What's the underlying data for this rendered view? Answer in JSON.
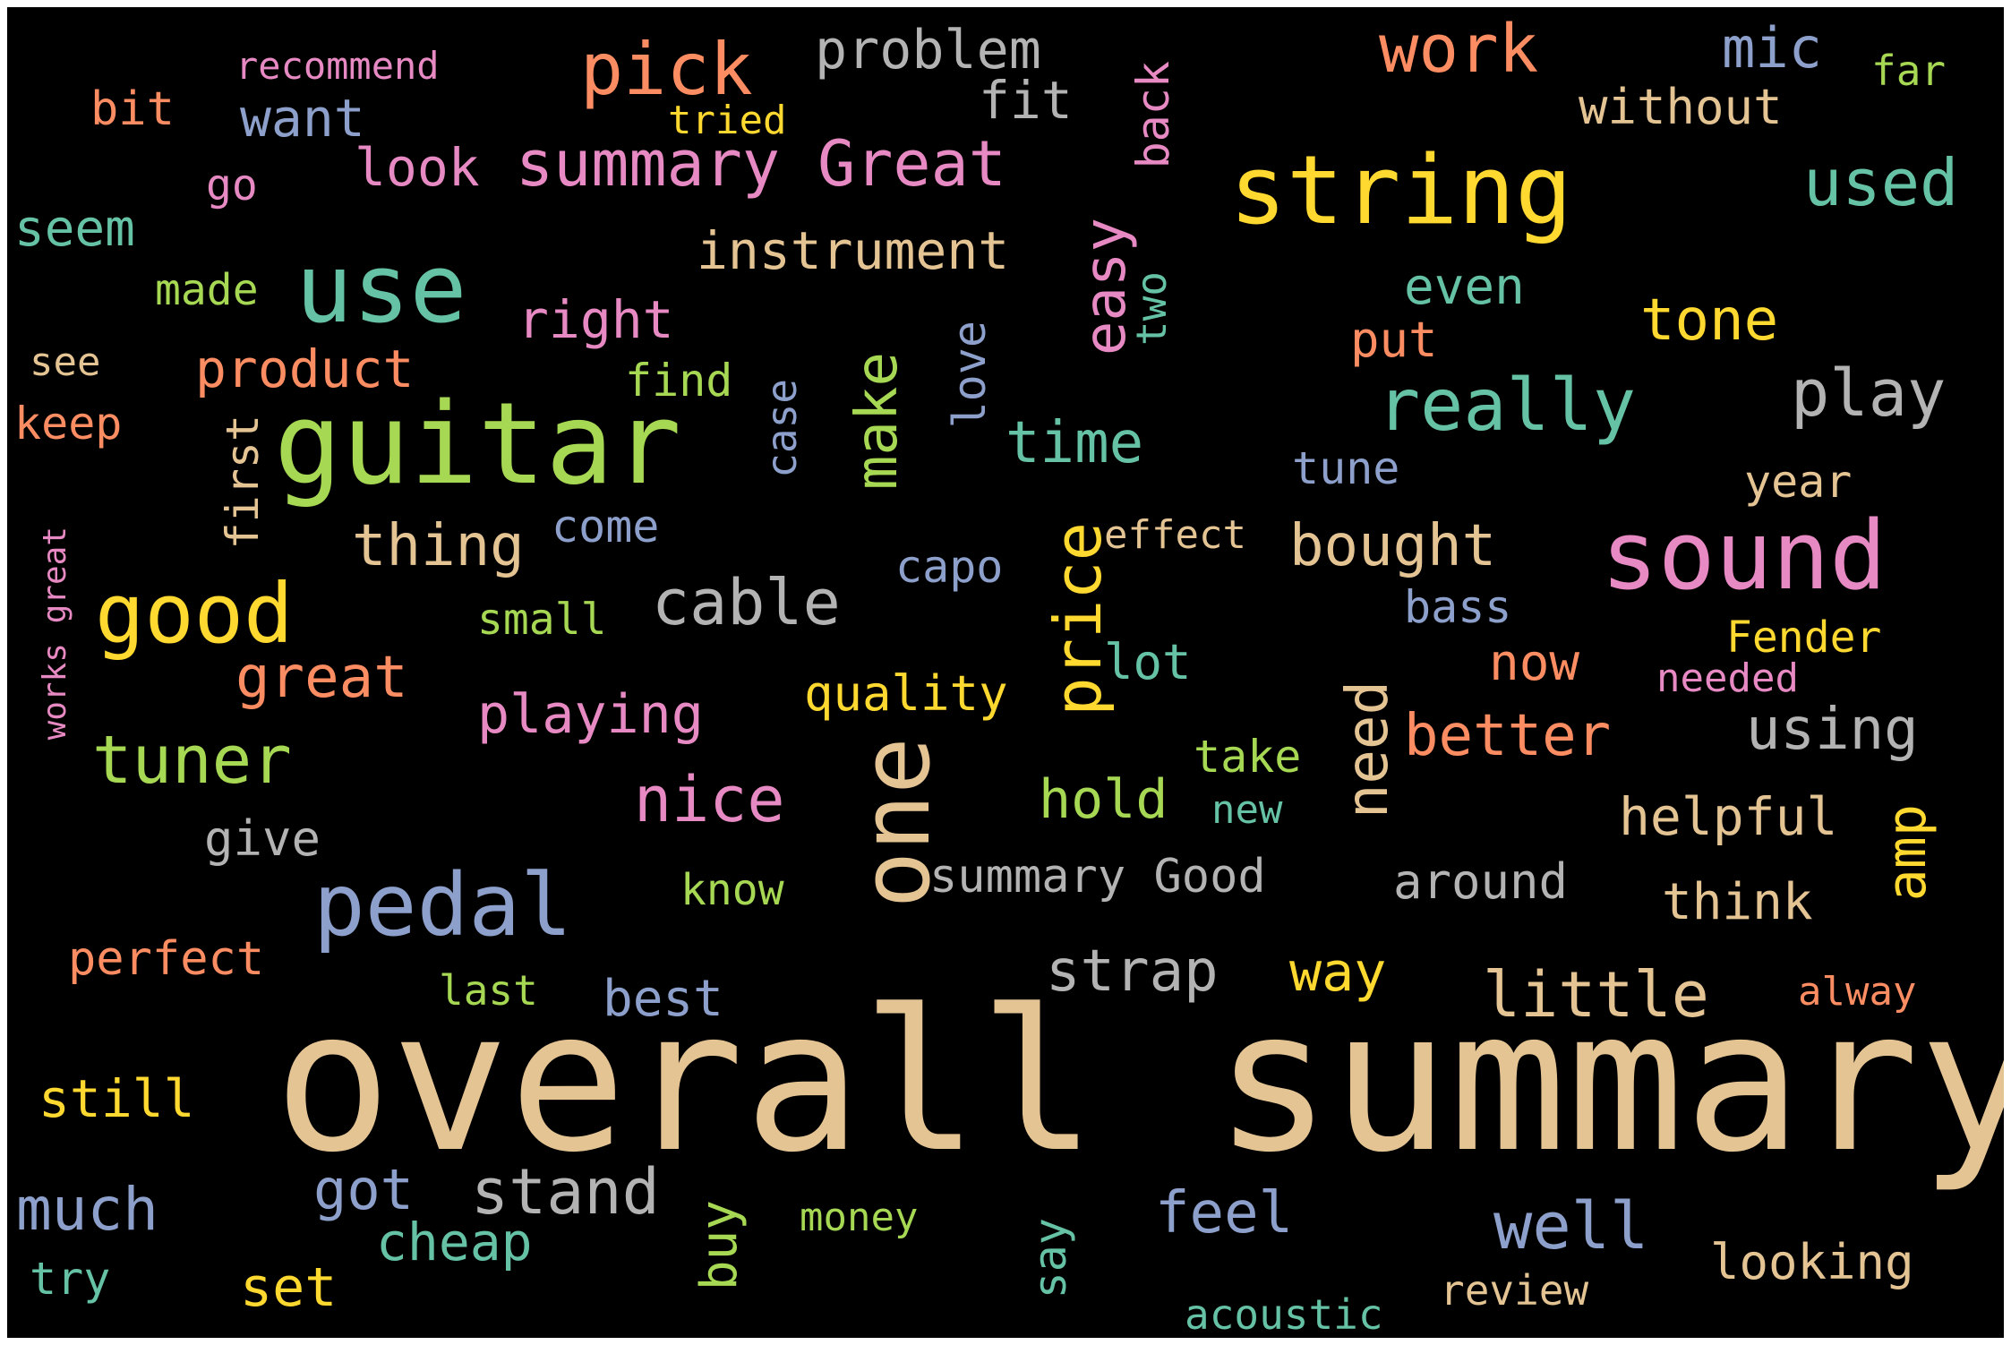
{
  "words": [
    {
      "text": "overall summary",
      "color": "#e5c494"
    },
    {
      "text": "guitar",
      "color": "#a6d854"
    },
    {
      "text": "string",
      "color": "#ffd92f"
    },
    {
      "text": "sound",
      "color": "#e78ac3"
    },
    {
      "text": "use",
      "color": "#66c2a5"
    },
    {
      "text": "one",
      "color": "#e5c494"
    },
    {
      "text": "pedal",
      "color": "#8da0cb"
    },
    {
      "text": "summary Great",
      "color": "#e78ac3"
    },
    {
      "text": "good",
      "color": "#ffd92f"
    },
    {
      "text": "pick",
      "color": "#fc8d62"
    },
    {
      "text": "really",
      "color": "#66c2a5"
    },
    {
      "text": "price",
      "color": "#ffd92f"
    },
    {
      "text": "work",
      "color": "#fc8d62"
    },
    {
      "text": "used",
      "color": "#66c2a5"
    },
    {
      "text": "play",
      "color": "#b3b3b3"
    },
    {
      "text": "easy",
      "color": "#e78ac3"
    },
    {
      "text": "tone",
      "color": "#ffd92f"
    },
    {
      "text": "tuner",
      "color": "#a6d854"
    },
    {
      "text": "cable",
      "color": "#b3b3b3"
    },
    {
      "text": "nice",
      "color": "#e78ac3"
    },
    {
      "text": "make",
      "color": "#a6d854"
    },
    {
      "text": "little",
      "color": "#e5c494"
    },
    {
      "text": "well",
      "color": "#8da0cb"
    },
    {
      "text": "need",
      "color": "#e5c494"
    },
    {
      "text": "better",
      "color": "#fc8d62"
    },
    {
      "text": "using",
      "color": "#b3b3b3"
    },
    {
      "text": "amp",
      "color": "#ffd92f"
    },
    {
      "text": "great",
      "color": "#fc8d62"
    },
    {
      "text": "thing",
      "color": "#e5c494"
    },
    {
      "text": "stand",
      "color": "#b3b3b3"
    },
    {
      "text": "strap",
      "color": "#b3b3b3"
    },
    {
      "text": "much",
      "color": "#8da0cb"
    },
    {
      "text": "bought",
      "color": "#e5c494"
    },
    {
      "text": "time",
      "color": "#66c2a5"
    },
    {
      "text": "problem",
      "color": "#b3b3b3"
    },
    {
      "text": "instrument",
      "color": "#e5c494"
    },
    {
      "text": "playing",
      "color": "#e78ac3"
    },
    {
      "text": "product",
      "color": "#fc8d62"
    },
    {
      "text": "helpful",
      "color": "#e5c494"
    },
    {
      "text": "want",
      "color": "#8da0cb"
    },
    {
      "text": "without",
      "color": "#e5c494"
    },
    {
      "text": "summary Good",
      "color": "#b3b3b3"
    },
    {
      "text": "quality",
      "color": "#ffd92f"
    },
    {
      "text": "mic",
      "color": "#8da0cb"
    },
    {
      "text": "back",
      "color": "#e78ac3"
    },
    {
      "text": "love",
      "color": "#8da0cb"
    },
    {
      "text": "case",
      "color": "#8da0cb"
    },
    {
      "text": "look",
      "color": "#e78ac3"
    },
    {
      "text": "fit",
      "color": "#b3b3b3"
    },
    {
      "text": "right",
      "color": "#e78ac3"
    },
    {
      "text": "even",
      "color": "#66c2a5"
    },
    {
      "text": "still",
      "color": "#ffd92f"
    },
    {
      "text": "feel",
      "color": "#8da0cb"
    },
    {
      "text": "got",
      "color": "#8da0cb"
    },
    {
      "text": "way",
      "color": "#ffd92f"
    },
    {
      "text": "think",
      "color": "#e5c494"
    },
    {
      "text": "around",
      "color": "#b3b3b3"
    },
    {
      "text": "perfect",
      "color": "#fc8d62"
    },
    {
      "text": "hold",
      "color": "#a6d854"
    },
    {
      "text": "buy",
      "color": "#a6d854"
    },
    {
      "text": "cheap",
      "color": "#66c2a5"
    },
    {
      "text": "set",
      "color": "#ffd92f"
    },
    {
      "text": "seem",
      "color": "#66c2a5"
    },
    {
      "text": "give",
      "color": "#b3b3b3"
    },
    {
      "text": "capo",
      "color": "#8da0cb"
    },
    {
      "text": "now",
      "color": "#fc8d62"
    },
    {
      "text": "best",
      "color": "#8da0cb"
    },
    {
      "text": "lot",
      "color": "#66c2a5"
    },
    {
      "text": "tune",
      "color": "#8da0cb"
    },
    {
      "text": "bit",
      "color": "#fc8d62"
    },
    {
      "text": "keep",
      "color": "#fc8d62"
    },
    {
      "text": "put",
      "color": "#fc8d62"
    },
    {
      "text": "looking",
      "color": "#e5c494"
    },
    {
      "text": "first",
      "color": "#e5c494"
    },
    {
      "text": "find",
      "color": "#a6d854"
    },
    {
      "text": "come",
      "color": "#8da0cb"
    },
    {
      "text": "year",
      "color": "#e5c494"
    },
    {
      "text": "Fender",
      "color": "#ffd92f"
    },
    {
      "text": "bass",
      "color": "#8da0cb"
    },
    {
      "text": "know",
      "color": "#a6d854"
    },
    {
      "text": "take",
      "color": "#a6d854"
    },
    {
      "text": "say",
      "color": "#66c2a5"
    },
    {
      "text": "small",
      "color": "#a6d854"
    },
    {
      "text": "made",
      "color": "#a6d854"
    },
    {
      "text": "go",
      "color": "#e78ac3"
    },
    {
      "text": "see",
      "color": "#e5c494"
    },
    {
      "text": "recommend",
      "color": "#e78ac3"
    },
    {
      "text": "tried",
      "color": "#ffd92f"
    },
    {
      "text": "far",
      "color": "#a6d854"
    },
    {
      "text": "effect",
      "color": "#e5c494"
    },
    {
      "text": "review",
      "color": "#e5c494"
    },
    {
      "text": "money",
      "color": "#a6d854"
    },
    {
      "text": "last",
      "color": "#a6d854"
    },
    {
      "text": "acoustic",
      "color": "#66c2a5"
    },
    {
      "text": "try",
      "color": "#66c2a5"
    },
    {
      "text": "two",
      "color": "#66c2a5"
    },
    {
      "text": "needed",
      "color": "#e78ac3"
    },
    {
      "text": "alway",
      "color": "#fc8d62"
    },
    {
      "text": "new",
      "color": "#66c2a5"
    },
    {
      "text": "works great",
      "color": "#e78ac3"
    }
  ]
}
